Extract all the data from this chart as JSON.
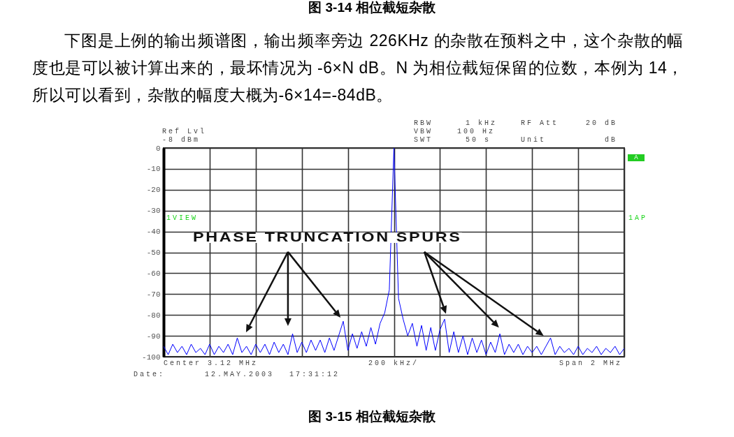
{
  "chart_data": {
    "type": "line",
    "title": "图 3-15 相位截短杂散",
    "annotations": [
      "图 3-14 相位截短杂散",
      "下图是上例的输出频谱图，输出频率旁边 226KHz 的杂散在预料之中，这个杂散的幅度也是可以被计算出来的，最坏情况为 -6×N dB。N 为相位截短保留的位数，本例为 14，所以可以看到，杂散的幅度大概为-6×14=-84dB。",
      "Ref Lvl",
      "-8 dBm",
      "RBW",
      "1 kHz",
      "RF Att",
      "20 dB",
      "VBW",
      "100 Hz",
      "SWT",
      "50 s",
      "Unit",
      "dB",
      "A",
      "1VIEW",
      "1AP",
      "PHASE TRUNCATION SPURS",
      "Center 3.12 MHz",
      "200 kHz/",
      "Span 2 MHz",
      "Date:",
      "12.MAY.2003",
      "17:31:12"
    ],
    "categories": [
      null,
      null,
      null,
      null,
      null,
      null,
      null,
      null,
      null,
      null,
      null,
      null,
      null,
      null,
      null,
      null,
      null,
      null,
      null,
      null,
      null,
      null,
      null,
      null,
      null,
      null,
      null,
      null,
      null,
      null,
      null,
      null,
      null,
      null,
      null,
      null,
      null,
      null,
      null,
      null,
      null,
      null,
      null,
      null,
      null,
      null,
      null,
      null,
      null,
      null,
      null,
      null,
      null,
      null,
      null,
      null,
      null,
      null,
      null,
      null,
      null,
      null,
      null,
      null,
      null,
      null,
      null,
      null,
      null,
      null,
      null,
      null,
      null,
      null,
      null,
      null,
      null,
      null,
      null,
      null,
      null,
      null,
      null,
      null,
      null,
      null,
      null,
      null,
      null,
      null,
      null,
      null,
      null,
      null,
      null,
      null,
      null,
      null,
      null,
      null,
      null
    ],
    "series": [
      {
        "color": "#0000ff",
        "values": [
          -95,
          -99,
          -94,
          -98,
          -95,
          -99,
          -94,
          -98,
          -96,
          -99,
          -94,
          -99,
          -95,
          -98,
          -94,
          -99,
          -91,
          -98,
          -95,
          -99,
          -94,
          -98,
          -94,
          -99,
          -93,
          -98,
          -94,
          -99,
          -89,
          -98,
          -93,
          -98,
          -92,
          -97,
          -92,
          -98,
          -91,
          -97,
          -90,
          -83,
          -97,
          -89,
          -96,
          -88,
          -95,
          -86,
          -94,
          -84,
          -79,
          -68,
          0,
          -72,
          -82,
          -90,
          -84,
          -95,
          -85,
          -97,
          -86,
          -97,
          -87,
          -82,
          -98,
          -88,
          -98,
          -90,
          -99,
          -91,
          -98,
          -92,
          -99,
          -93,
          -98,
          -89,
          -99,
          -94,
          -98,
          -94,
          -99,
          -95,
          -98,
          -95,
          -99,
          -95,
          -91,
          -99,
          -95,
          -98,
          -96,
          -99,
          -95,
          -99,
          -96,
          -98,
          -95,
          -99,
          -96,
          -98,
          -95,
          -99,
          -96
        ]
      }
    ],
    "ylim": [
      -100,
      0
    ],
    "yticks": [
      0,
      -10,
      -20,
      -30,
      -40,
      -50,
      -60,
      -70,
      -80,
      -90,
      -100
    ],
    "grid": true,
    "tick_labels": "y"
  }
}
